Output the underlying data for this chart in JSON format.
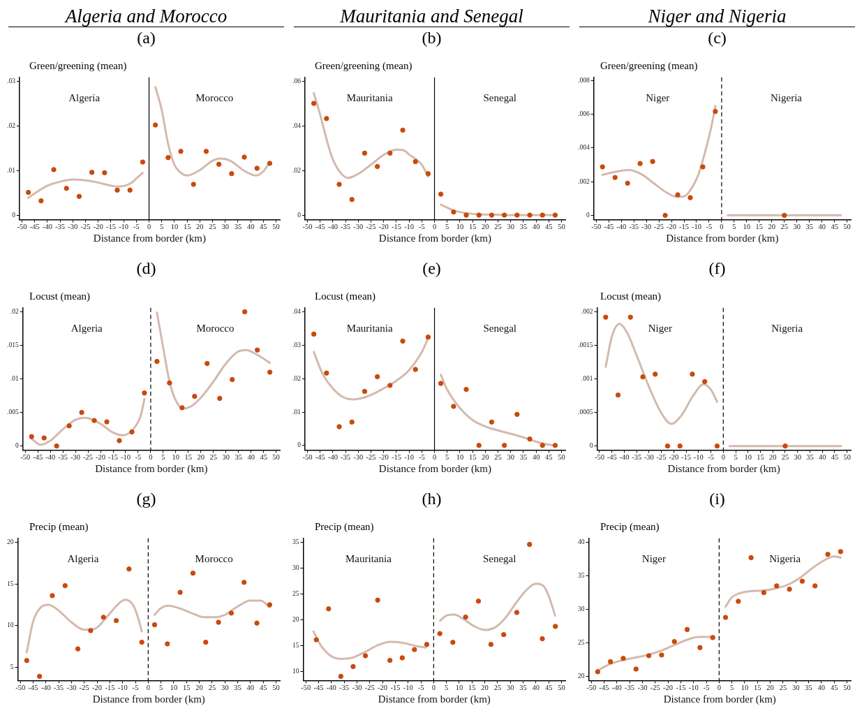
{
  "chart_data": [
    {
      "type": "scatter",
      "title": "Algeria and Morocco",
      "subtitle": "(a)",
      "ylabel": "Green/greening (mean)",
      "xlabel": "Distance from border (km)",
      "xlim": [
        -51,
        51.5
      ],
      "xticks": [
        -50,
        -45,
        -40,
        -35,
        -30,
        -25,
        -20,
        -15,
        -10,
        -5,
        0,
        5,
        10,
        15,
        20,
        25,
        30,
        35,
        40,
        45,
        50
      ],
      "ylim": [
        -0.001,
        0.0309
      ],
      "yticks": [
        0,
        {
          "value": 0.01,
          "label": ".01"
        },
        {
          "value": 0.02,
          "label": ".02"
        },
        {
          "value": 0.03,
          "label": ".03"
        }
      ],
      "annotations": [
        "Algeria",
        "Morocco"
      ],
      "ref_lines": [
        {
          "axis": "x",
          "value": 0,
          "line_style": "solid",
          "color": "#000000"
        }
      ],
      "series": [
        {
          "marker": "circle",
          "color": "#c94a0c",
          "x": [
            -47.5,
            -42.5,
            -37.5,
            -32.5,
            -27.5,
            -22.5,
            -17.5,
            -12.5,
            -7.5,
            -2.5,
            2.5,
            7.5,
            12.5,
            17.5,
            22.5,
            27.5,
            32.5,
            37.5,
            42.5,
            47.5
          ],
          "values": [
            0.0051,
            0.0032,
            0.0102,
            0.006,
            0.0042,
            0.0096,
            0.0095,
            0.0056,
            0.0056,
            0.0119,
            0.0202,
            0.0129,
            0.0143,
            0.0069,
            0.0143,
            0.0114,
            0.0093,
            0.013,
            0.0105,
            0.0116
          ]
        },
        {
          "type": "line",
          "color": "#d4b9ad",
          "line_style": "solid",
          "x": [
            -47.5,
            -40,
            -35,
            -30,
            -25,
            -20,
            -15,
            -12,
            -7,
            -5,
            -2.5
          ],
          "values": [
            0.0039,
            0.0066,
            0.0075,
            0.008,
            0.0078,
            0.0073,
            0.0066,
            0.0064,
            0.0072,
            0.0082,
            0.0095
          ]
        },
        {
          "type": "line",
          "color": "#d4b9ad",
          "line_style": "solid",
          "x": [
            2.5,
            5,
            7.5,
            10,
            12.5,
            15,
            20,
            25,
            28,
            32,
            37,
            42,
            45,
            47.5
          ],
          "values": [
            0.0287,
            0.0236,
            0.016,
            0.0113,
            0.0095,
            0.0089,
            0.0101,
            0.0122,
            0.0127,
            0.0122,
            0.0101,
            0.0089,
            0.0098,
            0.0119
          ]
        }
      ]
    },
    {
      "type": "scatter",
      "title": "Mauritania and Senegal",
      "subtitle": "(b)",
      "ylabel": "Green/greening (mean)",
      "xlabel": "Distance from border (km)",
      "xlim": [
        -51,
        51.5
      ],
      "xticks": [
        -50,
        -45,
        -40,
        -35,
        -30,
        -25,
        -20,
        -15,
        -10,
        -5,
        0,
        5,
        10,
        15,
        20,
        25,
        30,
        35,
        40,
        45,
        50
      ],
      "ylim": [
        -0.002,
        0.0618
      ],
      "yticks": [
        0,
        {
          "value": 0.02,
          "label": ".02"
        },
        {
          "value": 0.04,
          "label": ".04"
        },
        {
          "value": 0.06,
          "label": ".06"
        }
      ],
      "annotations": [
        "Mauritania",
        "Senegal"
      ],
      "ref_lines": [
        {
          "axis": "x",
          "value": 0,
          "line_style": "solid",
          "color": "#000000"
        }
      ],
      "series": [
        {
          "marker": "circle",
          "color": "#c94a0c",
          "x": [
            -47.5,
            -42.5,
            -37.5,
            -32.5,
            -27.5,
            -22.5,
            -17.5,
            -12.5,
            -7.5,
            -2.5,
            2.5,
            7.5,
            12.5,
            17.5,
            22.5,
            27.5,
            32.5,
            37.5,
            42.5,
            47.5
          ],
          "values": [
            0.0501,
            0.0433,
            0.0138,
            0.007,
            0.0278,
            0.0218,
            0.0278,
            0.0381,
            0.024,
            0.0186,
            0.0094,
            0.0014,
            0,
            0,
            0,
            0,
            0,
            0,
            0,
            0
          ]
        },
        {
          "type": "line",
          "color": "#d4b9ad",
          "line_style": "solid",
          "x": [
            -47.5,
            -45,
            -42,
            -40,
            -37,
            -34,
            -30,
            -25,
            -20,
            -15,
            -12,
            -10,
            -5,
            -2.5
          ],
          "values": [
            0.0547,
            0.045,
            0.032,
            0.025,
            0.019,
            0.0167,
            0.0185,
            0.0226,
            0.027,
            0.0294,
            0.029,
            0.0272,
            0.0226,
            0.0173
          ]
        },
        {
          "type": "line",
          "color": "#d4b9ad",
          "line_style": "solid",
          "x": [
            2.5,
            7.5,
            12.5,
            17.5,
            25,
            30,
            35,
            40,
            47.5
          ],
          "values": [
            0.0047,
            0.0021,
            0.0009,
            0.0003,
            0.0002,
            0,
            0,
            0,
            0
          ]
        }
      ]
    },
    {
      "type": "scatter",
      "title": "Niger and Nigeria",
      "subtitle": "(c)",
      "ylabel": "Green/greening (mean)",
      "xlabel": "Distance from border (km)",
      "xlim": [
        -51,
        51.5
      ],
      "xticks": [
        -50,
        -45,
        -40,
        -35,
        -30,
        -25,
        -20,
        -15,
        -10,
        -5,
        0,
        5,
        10,
        15,
        20,
        25,
        30,
        35,
        40,
        45,
        50
      ],
      "ylim": [
        -0.00025,
        0.0082
      ],
      "yticks": [
        0,
        {
          "value": 0.002,
          "label": ".002"
        },
        {
          "value": 0.004,
          "label": ".004"
        },
        {
          "value": 0.006,
          "label": ".006"
        },
        {
          "value": 0.008,
          "label": ".008"
        }
      ],
      "annotations": [
        "Niger",
        "Nigeria"
      ],
      "ref_lines": [
        {
          "axis": "x",
          "value": 0,
          "line_style": "dashed",
          "color": "#000000"
        }
      ],
      "series": [
        {
          "marker": "circle",
          "color": "#c94a0c",
          "x": [
            -47.5,
            -42.5,
            -37.5,
            -32.5,
            -27.5,
            -22.5,
            -17.5,
            -12.5,
            -7.5,
            -2.5,
            25
          ],
          "values": [
            0.00288,
            0.00225,
            0.00191,
            0.00308,
            0.0032,
            0,
            0.00122,
            0.00105,
            0.00288,
            0.00617,
            0
          ]
        },
        {
          "type": "line",
          "color": "#d4b9ad",
          "line_style": "solid",
          "x": [
            -47.5,
            -42,
            -37,
            -32,
            -27,
            -22,
            -18,
            -15,
            -12,
            -9,
            -6,
            -4,
            -2.5
          ],
          "values": [
            0.0024,
            0.0026,
            0.00269,
            0.00245,
            0.0019,
            0.00136,
            0.0011,
            0.00112,
            0.0016,
            0.00253,
            0.0041,
            0.00534,
            0.0065
          ]
        },
        {
          "type": "line",
          "color": "#d4b9ad",
          "line_style": "solid",
          "x": [
            2.5,
            47.5
          ],
          "values": [
            0,
            0
          ]
        }
      ]
    },
    {
      "type": "scatter",
      "subtitle": "(d)",
      "ylabel": "Locust (mean)",
      "xlabel": "Distance from border (km)",
      "xlim": [
        -51,
        51.5
      ],
      "xticks": [
        -50,
        -45,
        -40,
        -35,
        -30,
        -25,
        -20,
        -15,
        -10,
        -5,
        0,
        5,
        10,
        15,
        20,
        25,
        30,
        35,
        40,
        45,
        50
      ],
      "ylim": [
        -0.0006,
        0.0206
      ],
      "yticks": [
        0,
        {
          "value": 0.005,
          "label": ".005"
        },
        {
          "value": 0.01,
          "label": ".01"
        },
        {
          "value": 0.015,
          "label": ".015"
        },
        {
          "value": 0.02,
          "label": ".02"
        }
      ],
      "annotations": [
        "Algeria",
        "Morocco"
      ],
      "ref_lines": [
        {
          "axis": "x",
          "value": 0,
          "line_style": "dashed",
          "color": "#000000"
        }
      ],
      "series": [
        {
          "marker": "circle",
          "color": "#c94a0c",
          "x": [
            -47.5,
            -42.5,
            -37.5,
            -32.5,
            -27.5,
            -22.5,
            -17.5,
            -12.5,
            -7.5,
            -2.5,
            2.5,
            7.5,
            12.5,
            17.5,
            22.5,
            27.5,
            32.5,
            37.5,
            42.5,
            47.5
          ],
          "values": [
            0.0014,
            0.0012,
            0,
            0.003,
            0.005,
            0.0038,
            0.0036,
            0.0008,
            0.0021,
            0.0079,
            0.0126,
            0.0094,
            0.0057,
            0.0074,
            0.0123,
            0.0071,
            0.0099,
            0.02,
            0.0143,
            0.011
          ]
        },
        {
          "type": "line",
          "color": "#d4b9ad",
          "line_style": "solid",
          "x": [
            -47.5,
            -44,
            -40,
            -35,
            -30,
            -26,
            -20,
            -15,
            -11,
            -7,
            -4,
            -2.5
          ],
          "values": [
            0.0011,
            0.0002,
            0.0008,
            0.0025,
            0.0039,
            0.0042,
            0.0033,
            0.002,
            0.0016,
            0.0025,
            0.0045,
            0.007
          ]
        },
        {
          "type": "line",
          "color": "#d4b9ad",
          "line_style": "solid",
          "x": [
            2.5,
            5,
            7.5,
            10,
            13,
            16,
            20,
            25,
            30,
            35,
            38,
            42,
            47.5
          ],
          "values": [
            0.0199,
            0.0146,
            0.0096,
            0.0068,
            0.0056,
            0.0059,
            0.0072,
            0.0096,
            0.0123,
            0.0141,
            0.0143,
            0.0137,
            0.0124
          ]
        }
      ]
    },
    {
      "type": "scatter",
      "subtitle": "(e)",
      "ylabel": "Locust (mean)",
      "xlabel": "Distance from border (km)",
      "xlim": [
        -51,
        51.5
      ],
      "xticks": [
        -50,
        -45,
        -40,
        -35,
        -30,
        -25,
        -20,
        -15,
        -10,
        -5,
        0,
        5,
        10,
        15,
        20,
        25,
        30,
        35,
        40,
        45,
        50
      ],
      "ylim": [
        -0.0014,
        0.0413
      ],
      "yticks": [
        0,
        {
          "value": 0.01,
          "label": ".01"
        },
        {
          "value": 0.02,
          "label": ".02"
        },
        {
          "value": 0.03,
          "label": ".03"
        },
        {
          "value": 0.04,
          "label": ".04"
        }
      ],
      "annotations": [
        "Mauritania",
        "Senegal"
      ],
      "ref_lines": [
        {
          "axis": "x",
          "value": 0,
          "line_style": "solid",
          "color": "#000000"
        }
      ],
      "series": [
        {
          "marker": "circle",
          "color": "#c94a0c",
          "x": [
            -47.5,
            -42.5,
            -37.5,
            -32.5,
            -27.5,
            -22.5,
            -17.5,
            -12.5,
            -7.5,
            -2.5,
            2.5,
            7.5,
            12.5,
            17.5,
            22.5,
            27.5,
            32.5,
            37.5,
            42.5,
            47.5
          ],
          "values": [
            0.0334,
            0.0217,
            0.0056,
            0.007,
            0.0162,
            0.0206,
            0.018,
            0.0313,
            0.0228,
            0.0325,
            0.0186,
            0.0117,
            0.0168,
            0,
            0.007,
            0,
            0.0093,
            0.0019,
            0,
            0
          ]
        },
        {
          "type": "line",
          "color": "#d4b9ad",
          "line_style": "solid",
          "x": [
            -47.5,
            -44,
            -40,
            -36,
            -32,
            -28,
            -24,
            -20,
            -15,
            -10,
            -5,
            -2.5
          ],
          "values": [
            0.028,
            0.0214,
            0.0171,
            0.0145,
            0.0138,
            0.0143,
            0.0155,
            0.0171,
            0.0194,
            0.0226,
            0.028,
            0.0322
          ]
        },
        {
          "type": "line",
          "color": "#d4b9ad",
          "line_style": "solid",
          "x": [
            2.5,
            5,
            10,
            15,
            20,
            25,
            30,
            35,
            40,
            45,
            47.5
          ],
          "values": [
            0.0212,
            0.0167,
            0.0112,
            0.0076,
            0.0057,
            0.0045,
            0.0035,
            0.0024,
            0.0011,
            0.0002,
            0
          ]
        }
      ]
    },
    {
      "type": "scatter",
      "subtitle": "(f)",
      "ylabel": "Locust (mean)",
      "xlabel": "Distance from border (km)",
      "xlim": [
        -51,
        51.5
      ],
      "xticks": [
        -50,
        -45,
        -40,
        -35,
        -30,
        -25,
        -20,
        -15,
        -10,
        -5,
        0,
        5,
        10,
        15,
        20,
        25,
        30,
        35,
        40,
        45,
        50
      ],
      "ylim": [
        -6e-05,
        0.00206
      ],
      "yticks": [
        0,
        {
          "value": 0.0005,
          "label": ".0005"
        },
        {
          "value": 0.001,
          "label": ".001"
        },
        {
          "value": 0.0015,
          "label": ".0015"
        },
        {
          "value": 0.002,
          "label": ".002"
        }
      ],
      "annotations": [
        "Niger",
        "Nigeria"
      ],
      "ref_lines": [
        {
          "axis": "x",
          "value": 0,
          "line_style": "dashed",
          "color": "#000000"
        }
      ],
      "series": [
        {
          "marker": "circle",
          "color": "#c94a0c",
          "x": [
            -47.5,
            -42.5,
            -37.5,
            -32.5,
            -27.5,
            -22.5,
            -17.5,
            -12.5,
            -7.5,
            -2.5,
            25
          ],
          "values": [
            0.00192,
            0.00076,
            0.00192,
            0.00103,
            0.00107,
            0,
            0,
            0.00107,
            0.00096,
            0,
            0
          ]
        },
        {
          "type": "line",
          "color": "#d4b9ad",
          "line_style": "solid",
          "x": [
            -47.5,
            -45,
            -42,
            -39,
            -35,
            -30,
            -25,
            -21,
            -17,
            -12,
            -8,
            -5,
            -2.5
          ],
          "values": [
            0.00118,
            0.00163,
            0.00182,
            0.0017,
            0.00135,
            0.00088,
            0.00049,
            0.00033,
            0.00045,
            0.00076,
            0.00092,
            0.00084,
            0.00066
          ]
        },
        {
          "type": "line",
          "color": "#d4b9ad",
          "line_style": "solid",
          "x": [
            2.5,
            47.5
          ],
          "values": [
            0,
            0
          ]
        }
      ]
    },
    {
      "type": "scatter",
      "subtitle": "(g)",
      "ylabel": "Precip (mean)",
      "xlabel": "Distance from border (km)",
      "xlim": [
        -51,
        51.5
      ],
      "xticks": [
        -50,
        -45,
        -40,
        -35,
        -30,
        -25,
        -20,
        -15,
        -10,
        -5,
        0,
        5,
        10,
        15,
        20,
        25,
        30,
        35,
        40,
        45,
        50
      ],
      "ylim": [
        3.4,
        20.5
      ],
      "yticks": [
        5,
        10,
        15,
        20
      ],
      "annotations": [
        "Algeria",
        "Morocco"
      ],
      "ref_lines": [
        {
          "axis": "x",
          "value": 0,
          "line_style": "dashed",
          "color": "#000000"
        }
      ],
      "series": [
        {
          "marker": "circle",
          "color": "#c94a0c",
          "x": [
            -47.5,
            -42.5,
            -37.5,
            -32.5,
            -27.5,
            -22.5,
            -17.5,
            -12.5,
            -7.5,
            -2.5,
            2.5,
            7.5,
            12.5,
            17.5,
            22.5,
            27.5,
            32.5,
            37.5,
            42.5,
            47.5
          ],
          "values": [
            5.8,
            3.9,
            13.6,
            14.8,
            7.2,
            9.4,
            11.0,
            10.6,
            16.8,
            8.0,
            10.1,
            7.8,
            14.0,
            16.3,
            8.0,
            10.4,
            11.5,
            15.2,
            10.3,
            12.5
          ]
        },
        {
          "type": "line",
          "color": "#d4b9ad",
          "line_style": "solid",
          "x": [
            -47.5,
            -45,
            -42,
            -39,
            -35,
            -30,
            -25,
            -21,
            -16,
            -12,
            -9,
            -6,
            -4,
            -2.5
          ],
          "values": [
            6.8,
            10.5,
            12.2,
            12.5,
            11.8,
            10.4,
            9.5,
            9.6,
            11.1,
            12.5,
            13.1,
            12.5,
            11.0,
            9.3
          ]
        },
        {
          "type": "line",
          "color": "#d4b9ad",
          "line_style": "solid",
          "x": [
            2.5,
            5,
            8,
            12,
            17,
            22,
            26,
            30,
            35,
            40,
            44,
            47.5
          ],
          "values": [
            11.3,
            12.1,
            12.4,
            12.1,
            11.5,
            11.0,
            11.0,
            11.3,
            12.3,
            13.0,
            13.0,
            12.2
          ]
        }
      ]
    },
    {
      "type": "scatter",
      "subtitle": "(h)",
      "ylabel": "Precip (mean)",
      "xlabel": "Distance from border (km)",
      "xlim": [
        -51,
        51.5
      ],
      "xticks": [
        -50,
        -45,
        -40,
        -35,
        -30,
        -25,
        -20,
        -15,
        -10,
        -5,
        0,
        5,
        10,
        15,
        20,
        25,
        30,
        35,
        40,
        45,
        50
      ],
      "ylim": [
        8.2,
        35.8
      ],
      "yticks": [
        10,
        15,
        20,
        25,
        30,
        35
      ],
      "annotations": [
        "Mauritania",
        "Senegal"
      ],
      "ref_lines": [
        {
          "axis": "x",
          "value": 0,
          "line_style": "dashed",
          "color": "#000000"
        }
      ],
      "series": [
        {
          "marker": "circle",
          "color": "#c94a0c",
          "x": [
            -45.9,
            -41.1,
            -36.3,
            -31.5,
            -26.7,
            -21.9,
            -17.1,
            -12.3,
            -7.5,
            -2.7,
            2.4,
            7.5,
            12.5,
            17.5,
            22.4,
            27.4,
            32.5,
            37.5,
            42.5,
            47.6
          ],
          "values": [
            16.1,
            22.1,
            9.0,
            10.9,
            13.0,
            23.8,
            12.1,
            12.6,
            14.2,
            15.2,
            17.3,
            15.6,
            20.5,
            23.6,
            15.2,
            17.1,
            21.4,
            34.6,
            16.3,
            18.7
          ]
        },
        {
          "type": "line",
          "color": "#d4b9ad",
          "line_style": "solid",
          "x": [
            -47,
            -44,
            -40,
            -36,
            -32,
            -27,
            -22,
            -17,
            -12,
            -7,
            -3
          ],
          "values": [
            17.7,
            14.9,
            12.9,
            12.4,
            12.6,
            13.7,
            15.0,
            15.7,
            15.5,
            14.9,
            14.6
          ]
        },
        {
          "type": "line",
          "color": "#d4b9ad",
          "line_style": "solid",
          "x": [
            2.5,
            5,
            8,
            12,
            16,
            20,
            24,
            28,
            32,
            36,
            40,
            43,
            45,
            47.5
          ],
          "values": [
            19.8,
            20.8,
            21.0,
            20.0,
            18.7,
            18.0,
            18.5,
            20.3,
            23.1,
            25.6,
            27.0,
            26.5,
            24.6,
            20.8
          ]
        }
      ]
    },
    {
      "type": "scatter",
      "subtitle": "(i)",
      "ylabel": "Precip (mean)",
      "xlabel": "Distance from border (km)",
      "xlim": [
        -51,
        51.5
      ],
      "xticks": [
        -50,
        -45,
        -40,
        -35,
        -30,
        -25,
        -20,
        -15,
        -10,
        -5,
        0,
        5,
        10,
        15,
        20,
        25,
        30,
        35,
        40,
        45,
        50
      ],
      "ylim": [
        19.4,
        40.6
      ],
      "yticks": [
        20,
        25,
        30,
        35,
        40
      ],
      "annotations": [
        "Niger",
        "Nigeria"
      ],
      "ref_lines": [
        {
          "axis": "x",
          "value": 0,
          "line_style": "dashed",
          "color": "#000000"
        }
      ],
      "series": [
        {
          "marker": "circle",
          "color": "#c94a0c",
          "x": [
            -47.5,
            -42.5,
            -37.5,
            -32.5,
            -27.5,
            -22.5,
            -17.5,
            -12.5,
            -7.5,
            -2.5,
            2.5,
            7.5,
            12.5,
            17.5,
            22.5,
            27.5,
            32.5,
            37.5,
            42.5,
            47.5
          ],
          "values": [
            20.7,
            22.2,
            22.7,
            21.1,
            23.1,
            23.2,
            25.2,
            27.0,
            24.3,
            25.8,
            28.8,
            31.2,
            37.7,
            32.5,
            33.5,
            33.0,
            34.2,
            33.5,
            38.2,
            38.6
          ]
        },
        {
          "type": "line",
          "color": "#d4b9ad",
          "line_style": "solid",
          "x": [
            -47.5,
            -43,
            -38,
            -33,
            -28,
            -23,
            -18,
            -13,
            -8,
            -4,
            -2.5
          ],
          "values": [
            20.9,
            21.8,
            22.4,
            22.8,
            23.2,
            23.8,
            24.6,
            25.4,
            25.9,
            25.9,
            25.9
          ]
        },
        {
          "type": "line",
          "color": "#d4b9ad",
          "line_style": "solid",
          "x": [
            2.5,
            5,
            8,
            12,
            17,
            22,
            27,
            32,
            37,
            42,
            45,
            47.5
          ],
          "values": [
            30.4,
            31.8,
            32.4,
            32.7,
            32.8,
            33.1,
            33.7,
            34.8,
            36.3,
            37.5,
            37.9,
            37.7
          ]
        }
      ]
    }
  ]
}
